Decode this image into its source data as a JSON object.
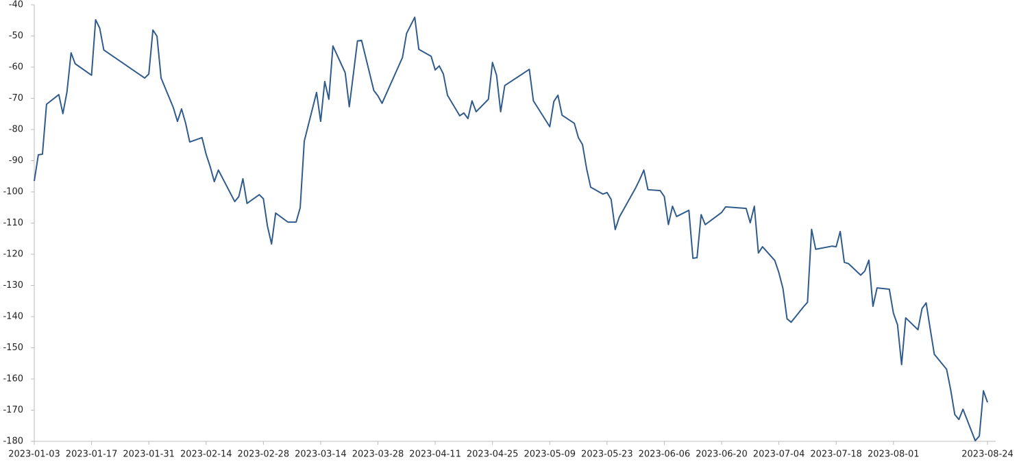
{
  "chart_data": {
    "type": "line",
    "x": [
      "2023-01-03",
      "2023-01-04",
      "2023-01-05",
      "2023-01-06",
      "2023-01-09",
      "2023-01-10",
      "2023-01-11",
      "2023-01-12",
      "2023-01-13",
      "2023-01-17",
      "2023-01-18",
      "2023-01-19",
      "2023-01-20",
      "2023-01-30",
      "2023-01-31",
      "2023-02-01",
      "2023-02-02",
      "2023-02-03",
      "2023-02-06",
      "2023-02-07",
      "2023-02-08",
      "2023-02-09",
      "2023-02-10",
      "2023-02-13",
      "2023-02-14",
      "2023-02-15",
      "2023-02-16",
      "2023-02-17",
      "2023-02-21",
      "2023-02-22",
      "2023-02-23",
      "2023-02-24",
      "2023-02-27",
      "2023-02-28",
      "2023-03-01",
      "2023-03-02",
      "2023-03-03",
      "2023-03-06",
      "2023-03-07",
      "2023-03-08",
      "2023-03-09",
      "2023-03-10",
      "2023-03-13",
      "2023-03-14",
      "2023-03-15",
      "2023-03-16",
      "2023-03-17",
      "2023-03-20",
      "2023-03-21",
      "2023-03-22",
      "2023-03-23",
      "2023-03-24",
      "2023-03-27",
      "2023-03-28",
      "2023-03-29",
      "2023-04-03",
      "2023-04-04",
      "2023-04-06",
      "2023-04-07",
      "2023-04-10",
      "2023-04-11",
      "2023-04-12",
      "2023-04-13",
      "2023-04-14",
      "2023-04-17",
      "2023-04-18",
      "2023-04-19",
      "2023-04-20",
      "2023-04-21",
      "2023-04-24",
      "2023-04-25",
      "2023-04-26",
      "2023-04-27",
      "2023-04-28",
      "2023-05-04",
      "2023-05-05",
      "2023-05-09",
      "2023-05-10",
      "2023-05-11",
      "2023-05-12",
      "2023-05-15",
      "2023-05-16",
      "2023-05-17",
      "2023-05-18",
      "2023-05-19",
      "2023-05-22",
      "2023-05-23",
      "2023-05-24",
      "2023-05-25",
      "2023-05-26",
      "2023-05-30",
      "2023-05-31",
      "2023-06-01",
      "2023-06-02",
      "2023-06-05",
      "2023-06-06",
      "2023-06-07",
      "2023-06-08",
      "2023-06-09",
      "2023-06-12",
      "2023-06-13",
      "2023-06-14",
      "2023-06-15",
      "2023-06-16",
      "2023-06-20",
      "2023-06-21",
      "2023-06-26",
      "2023-06-27",
      "2023-06-28",
      "2023-06-29",
      "2023-06-30",
      "2023-07-03",
      "2023-07-04",
      "2023-07-05",
      "2023-07-06",
      "2023-07-07",
      "2023-07-10",
      "2023-07-11",
      "2023-07-12",
      "2023-07-13",
      "2023-07-17",
      "2023-07-18",
      "2023-07-19",
      "2023-07-20",
      "2023-07-21",
      "2023-07-24",
      "2023-07-25",
      "2023-07-26",
      "2023-07-27",
      "2023-07-28",
      "2023-07-31",
      "2023-08-01",
      "2023-08-02",
      "2023-08-03",
      "2023-08-04",
      "2023-08-07",
      "2023-08-08",
      "2023-08-09",
      "2023-08-10",
      "2023-08-11",
      "2023-08-14",
      "2023-08-15",
      "2023-08-16",
      "2023-08-17",
      "2023-08-18",
      "2023-08-21",
      "2023-08-22",
      "2023-08-23",
      "2023-08-24"
    ],
    "series": [
      {
        "color": "#2e5b8c",
        "values": [
          -96.5,
          -88.1,
          -87.9,
          -71.9,
          -68.8,
          -74.9,
          -67.9,
          -55.4,
          -58.9,
          -62.6,
          -44.8,
          -47.5,
          -54.5,
          -63.5,
          -62.2,
          -48.1,
          -50.1,
          -63.5,
          -73.0,
          -77.4,
          -73.4,
          -78.0,
          -84.0,
          -82.6,
          -87.9,
          -91.9,
          -96.7,
          -93.0,
          -103.1,
          -101.5,
          -95.8,
          -103.7,
          -100.9,
          -102.2,
          -111.0,
          -116.7,
          -106.8,
          -109.7,
          -109.7,
          -109.7,
          -105.1,
          -83.7,
          -68.1,
          -77.4,
          -64.6,
          -70.3,
          -53.2,
          -61.8,
          -72.7,
          -62.2,
          -51.6,
          -51.4,
          -67.5,
          -69.2,
          -71.6,
          -56.9,
          -49.2,
          -44.0,
          -54.3,
          -56.5,
          -60.9,
          -59.6,
          -62.2,
          -69.0,
          -75.6,
          -74.7,
          -76.5,
          -70.8,
          -74.3,
          -70.3,
          -58.5,
          -62.6,
          -74.3,
          -65.9,
          -60.7,
          -70.8,
          -79.1,
          -71.0,
          -69.0,
          -75.4,
          -78.0,
          -82.6,
          -84.8,
          -92.5,
          -98.5,
          -100.7,
          -100.2,
          -102.4,
          -112.1,
          -108.1,
          -98.7,
          -96.0,
          -93.0,
          -99.3,
          -99.6,
          -101.5,
          -110.5,
          -104.6,
          -107.9,
          -105.9,
          -121.3,
          -121.1,
          -107.3,
          -110.5,
          -106.6,
          -104.8,
          -105.3,
          -109.9,
          -104.6,
          -119.6,
          -117.6,
          -122.0,
          -125.9,
          -131.0,
          -140.7,
          -141.8,
          -136.9,
          -135.4,
          -112.0,
          -118.4,
          -117.4,
          -117.6,
          -112.7,
          -122.6,
          -123.0,
          -126.7,
          -125.4,
          -121.9,
          -136.7,
          -130.8,
          -131.2,
          -138.9,
          -142.6,
          -155.4,
          -140.4,
          -144.2,
          -137.4,
          -135.6,
          -144.0,
          -152.1,
          -156.9,
          -163.5,
          -171.4,
          -173.0,
          -169.7,
          -179.8,
          -178.3,
          -163.8,
          -167.5
        ]
      }
    ],
    "xlim": [
      "2023-01-03",
      "2023-08-26"
    ],
    "xticks": [
      "2023-01-03",
      "2023-01-17",
      "2023-01-31",
      "2023-02-14",
      "2023-02-28",
      "2023-03-14",
      "2023-03-28",
      "2023-04-11",
      "2023-04-25",
      "2023-05-09",
      "2023-05-23",
      "2023-06-06",
      "2023-06-20",
      "2023-07-04",
      "2023-07-18",
      "2023-08-01",
      "2023-08-24"
    ],
    "ylim": [
      -180,
      -40
    ],
    "yticks": [
      -180,
      -170,
      -160,
      -150,
      -140,
      -130,
      -120,
      -110,
      -100,
      -90,
      -80,
      -70,
      -60,
      -50,
      -40
    ]
  }
}
